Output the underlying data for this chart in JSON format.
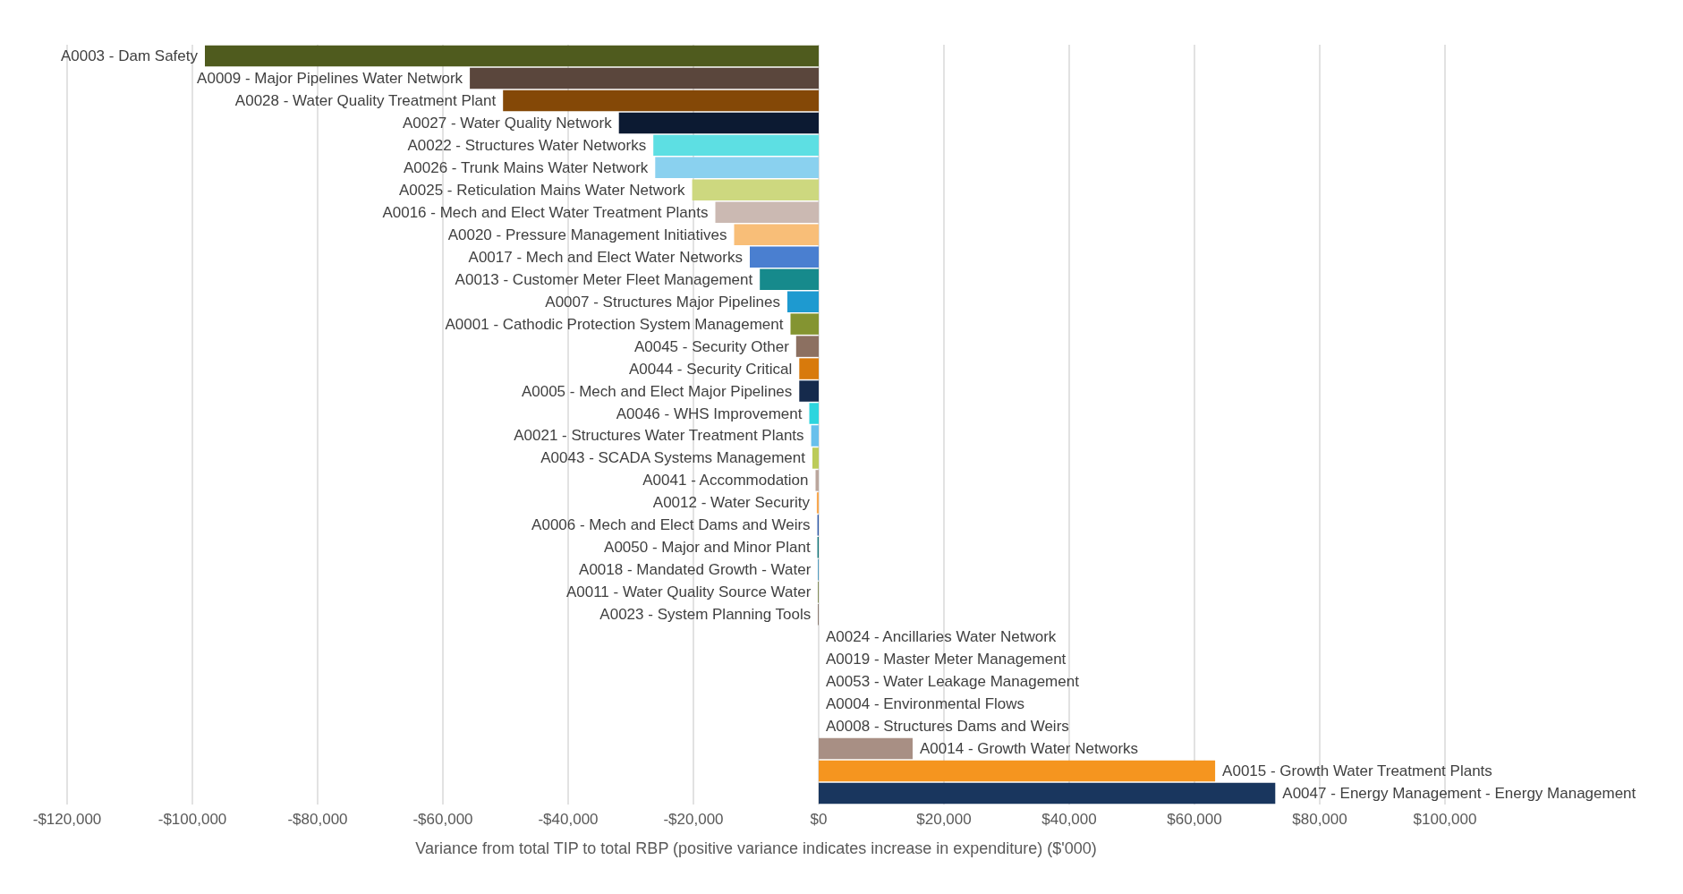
{
  "chart_data": {
    "type": "bar",
    "orientation": "horizontal",
    "xlabel": "Variance from total TIP to total RBP (positive variance indicates increase in expenditure) ($'000)",
    "categories": [
      "A0003 - Dam Safety",
      "A0009 - Major Pipelines Water Network",
      "A0028 - Water Quality Treatment Plant",
      "A0027 - Water Quality Network",
      "A0022 - Structures Water Networks",
      "A0026 - Trunk Mains Water Network",
      "A0025 - Reticulation Mains Water Network",
      "A0016 - Mech and Elect Water Treatment Plants",
      "A0020 - Pressure Management Initiatives",
      "A0017 - Mech and Elect Water Networks",
      "A0013 - Customer Meter Fleet Management",
      "A0007 - Structures Major Pipelines",
      "A0001 - Cathodic Protection System Management",
      "A0045 - Security Other",
      "A0044 - Security Critical",
      "A0005 - Mech and Elect Major Pipelines",
      "A0046 - WHS Improvement",
      "A0021 - Structures Water Treatment Plants",
      "A0043 - SCADA Systems Management",
      "A0041 - Accommodation",
      "A0012 - Water Security",
      "A0006 - Mech and Elect Dams and Weirs",
      "A0050 - Major and Minor Plant",
      "A0018 - Mandated Growth - Water",
      "A0011 - Water Quality Source Water",
      "A0023 - System Planning Tools",
      "A0024 - Ancillaries Water Network",
      "A0019 - Master Meter Management",
      "A0053 - Water Leakage Management",
      "A0004 - Environmental Flows",
      "A0008 - Structures Dams and Weirs",
      "A0014 - Growth Water Networks",
      "A0015 - Growth Water Treatment Plants",
      "A0047 - Energy Management - Energy Management"
    ],
    "values": [
      -98000,
      -55700,
      -50400,
      -31900,
      -26400,
      -26100,
      -20200,
      -16500,
      -13500,
      -11000,
      -9400,
      -5000,
      -4500,
      -3600,
      -3100,
      -3100,
      -1500,
      -1200,
      -1000,
      -500,
      -300,
      -200,
      -200,
      -100,
      -100,
      -100,
      0,
      0,
      0,
      0,
      0,
      15000,
      63300,
      72900
    ],
    "colors": [
      "#4f5b1e",
      "#5a463c",
      "#844807",
      "#0c1a32",
      "#5ddfe3",
      "#8ad1ef",
      "#cdd87f",
      "#cbb9b2",
      "#f8be78",
      "#4a7fd0",
      "#168a8c",
      "#1e9ad0",
      "#849431",
      "#8c7061",
      "#d87a0c",
      "#152a4c",
      "#2dd5de",
      "#68c0ec",
      "#bccb5a",
      "#bba69d",
      "#f8a850",
      "#2f5aa8",
      "#13767a",
      "#1682b4",
      "#5e6e24",
      "#6b5446",
      "#7f7f7f",
      "#7f7f7f",
      "#7f7f7f",
      "#7f7f7f",
      "#7f7f7f",
      "#a88f84",
      "#f5951f",
      "#19365e"
    ],
    "xlim": [
      -120000,
      100000
    ],
    "xticks": [
      {
        "value": -120000,
        "label": "-$120,000"
      },
      {
        "value": -100000,
        "label": "-$100,000"
      },
      {
        "value": -80000,
        "label": "-$80,000"
      },
      {
        "value": -60000,
        "label": "-$60,000"
      },
      {
        "value": -40000,
        "label": "-$40,000"
      },
      {
        "value": -20000,
        "label": "-$20,000"
      },
      {
        "value": 0,
        "label": "$0"
      },
      {
        "value": 20000,
        "label": "$20,000"
      },
      {
        "value": 40000,
        "label": "$40,000"
      },
      {
        "value": 60000,
        "label": "$60,000"
      },
      {
        "value": 80000,
        "label": "$80,000"
      },
      {
        "value": 100000,
        "label": "$100,000"
      }
    ],
    "grid": "x",
    "tick_labels": "x"
  }
}
